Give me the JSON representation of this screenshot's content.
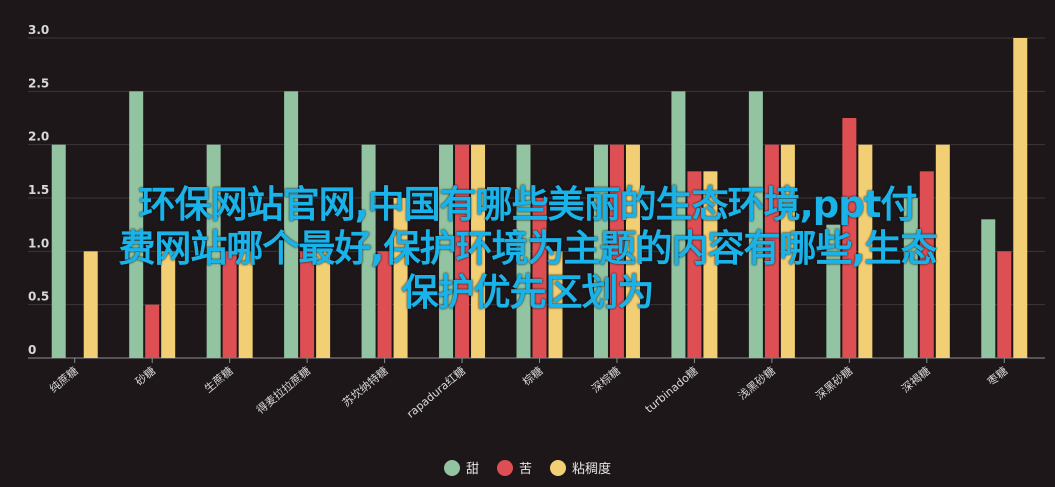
{
  "chart_data": {
    "type": "bar",
    "categories": [
      "纯蔗糖",
      "砂糖",
      "生蔗糖",
      "得麦拉拉蔗糖",
      "苏坎纳特糖",
      "rapadura红糖",
      "棕糖",
      "深棕糖",
      "turbinado糖",
      "浅黑砂糖",
      "深黑砂糖",
      "深褐糖",
      "枣糖"
    ],
    "series": [
      {
        "name": "甜",
        "color": "#93c4a1",
        "values": [
          2.0,
          2.5,
          2.0,
          2.5,
          2.0,
          2.0,
          2.0,
          2.0,
          2.5,
          2.5,
          1.25,
          1.5,
          1.3
        ]
      },
      {
        "name": "苦",
        "color": "#de4f53",
        "values": [
          0,
          0.5,
          1.0,
          1.0,
          1.0,
          2.0,
          1.5,
          2.0,
          1.75,
          2.0,
          2.25,
          1.75,
          1.0
        ]
      },
      {
        "name": "粘稠度",
        "color": "#f2cf74",
        "values": [
          1.0,
          1.0,
          1.0,
          1.0,
          1.5,
          2.0,
          1.0,
          2.0,
          1.75,
          2.0,
          2.0,
          2.0,
          3.0
        ]
      }
    ],
    "ylim": [
      0,
      3
    ],
    "yticks": [
      "0",
      "0.5",
      "1.0",
      "1.5",
      "2.0",
      "2.5",
      "3.0"
    ],
    "grid": true,
    "legend": "bottom"
  },
  "overlay_text": {
    "line1": "环保网站官网,中国有哪些美丽的生态环境,ppt付",
    "line2": "费网站哪个最好,保护环境为主题的内容有哪些,生态",
    "line3": "保护优先区划为"
  }
}
